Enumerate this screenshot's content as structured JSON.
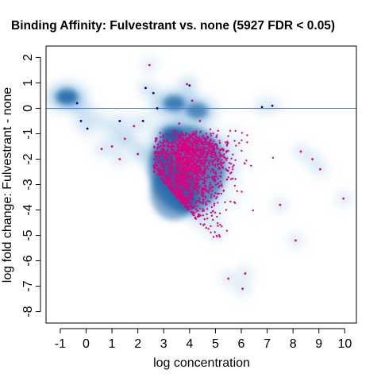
{
  "chart_data": {
    "type": "scatter",
    "title": "Binding Affinity: Fulvestrant vs. none (5927 FDR < 0.05)",
    "xlabel": "log concentration",
    "ylabel": "log fold change: Fulvestrant - none",
    "xlim": [
      -1.55,
      10.45
    ],
    "ylim": [
      -8.45,
      2.45
    ],
    "x_ticks": [
      "-1",
      "0",
      "1",
      "2",
      "3",
      "4",
      "5",
      "6",
      "7",
      "8",
      "9",
      "10"
    ],
    "y_ticks": [
      "2",
      "1",
      "0",
      "-1",
      "-2",
      "-3",
      "-4",
      "-5",
      "-6",
      "-7",
      "-8"
    ],
    "reference_line_y": 0,
    "grid": false,
    "colors": {
      "density_dark": "#08519c",
      "density_mid": "#6baed6",
      "density_light": "#deebf7",
      "significant": "#e0007f",
      "nonsignificant": "#00007f",
      "reference_line": "#4a78d6"
    },
    "density_clusters": [
      {
        "x": -0.75,
        "y": 0.45,
        "intensity": 1.0
      },
      {
        "x": 3.4,
        "y": 0.2,
        "intensity": 0.9
      },
      {
        "x": 4.3,
        "y": -0.1,
        "intensity": 0.8
      },
      {
        "x": 3.3,
        "y": -1.0,
        "intensity": 0.9
      },
      {
        "x": 3.0,
        "y": -2.0,
        "intensity": 0.7
      }
    ],
    "series": [
      {
        "name": "",
        "color": "#00007f",
        "points": [
          [
            -0.35,
            0.2
          ],
          [
            -0.2,
            -0.5
          ],
          [
            0.05,
            -0.8
          ],
          [
            1.3,
            -0.5
          ],
          [
            2.2,
            -0.5
          ],
          [
            2.3,
            0.8
          ],
          [
            2.6,
            0.6
          ],
          [
            2.75,
            0.0
          ],
          [
            6.8,
            0.05
          ],
          [
            7.2,
            0.1
          ],
          [
            4.0,
            0.9
          ]
        ]
      },
      {
        "name": "",
        "color": "#e0007f",
        "points": [
          [
            2.45,
            1.7
          ],
          [
            3.9,
            0.95
          ],
          [
            4.1,
            0.3
          ],
          [
            1.85,
            -0.7
          ],
          [
            1.5,
            -1.2
          ],
          [
            1.0,
            -1.5
          ],
          [
            0.6,
            -1.6
          ],
          [
            1.3,
            -2.0
          ],
          [
            2.0,
            -1.8
          ],
          [
            8.3,
            -1.7
          ],
          [
            8.75,
            -2.0
          ],
          [
            9.05,
            -2.4
          ],
          [
            7.5,
            -3.8
          ],
          [
            8.1,
            -5.2
          ],
          [
            9.95,
            -3.55
          ],
          [
            6.15,
            -6.5
          ],
          [
            6.05,
            -7.1
          ],
          [
            5.5,
            -6.7
          ],
          [
            3.6,
            -0.6
          ],
          [
            4.4,
            -0.5
          ]
        ]
      }
    ],
    "significant_cloud": {
      "count": 1750,
      "note_x_range": [
        2.6,
        7.3
      ],
      "note_y_range": [
        -6.3,
        -0.8
      ]
    }
  }
}
